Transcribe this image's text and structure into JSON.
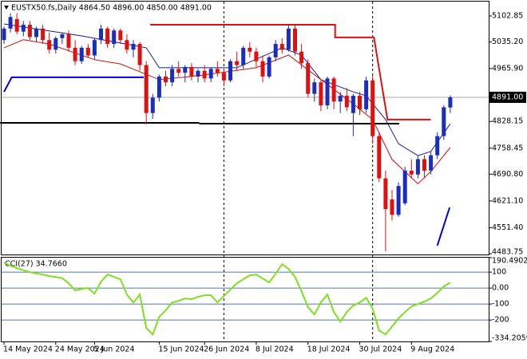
{
  "chart_data": [
    {
      "type": "candlestick",
      "title": "EUSTX50.fs,Daily  4864.50 4896.00 4850.00 4891.00",
      "categories": [
        "14 May 2024",
        null,
        null,
        null,
        null,
        null,
        null,
        null,
        "24 May 2024",
        null,
        null,
        null,
        null,
        null,
        "5 Jun 2024",
        null,
        null,
        null,
        null,
        null,
        null,
        null,
        null,
        null,
        "15 Jun 2024",
        null,
        null,
        null,
        null,
        null,
        null,
        "26 Jun 2024",
        null,
        null,
        null,
        null,
        null,
        null,
        null,
        "8 Jul 2024",
        null,
        null,
        null,
        null,
        null,
        null,
        null,
        "18 Jul 2024",
        null,
        null,
        null,
        null,
        null,
        null,
        null,
        "30 Jul 2024",
        null,
        null,
        null,
        null,
        null,
        null,
        null,
        "9 Aug 2024",
        null,
        null,
        null,
        null,
        null,
        null
      ],
      "open": [
        5040,
        5070,
        5095,
        5062,
        5080,
        5048,
        5070,
        5040,
        5015,
        5045,
        5055,
        5020,
        4985,
        5020,
        5000,
        5040,
        5070,
        5030,
        5065,
        5040,
        5015,
        5030,
        4975,
        4850,
        4890,
        4945,
        4930,
        4965,
        4955,
        4970,
        4945,
        4960,
        4940,
        4965,
        4955,
        4935,
        4985,
        4975,
        5020,
        5010,
        4985,
        4945,
        4995,
        5030,
        5015,
        5070,
        5010,
        4980,
        4900,
        4930,
        4870,
        4940,
        4880,
        4895,
        4850,
        4895,
        4860,
        4935,
        4790,
        4680,
        4625,
        4585,
        4615,
        4700,
        4690,
        4730,
        4700,
        4740,
        4790,
        4864.5
      ],
      "high": [
        5075,
        5110,
        5110,
        5090,
        5090,
        5075,
        5080,
        5060,
        5050,
        5060,
        5065,
        5040,
        5025,
        5030,
        5045,
        5080,
        5075,
        5070,
        5070,
        5055,
        5040,
        5035,
        4985,
        4900,
        4950,
        4960,
        4975,
        4985,
        4975,
        4980,
        4965,
        4975,
        4970,
        4985,
        4965,
        4990,
        5010,
        5025,
        5035,
        5020,
        5000,
        5000,
        5040,
        5045,
        5080,
        5080,
        5030,
        4990,
        4940,
        4935,
        4945,
        4945,
        4905,
        4915,
        4900,
        4905,
        4945,
        4950,
        4800,
        4700,
        4650,
        4670,
        4710,
        4730,
        4740,
        4740,
        4750,
        4800,
        4870,
        4896
      ],
      "low": [
        5030,
        5060,
        5055,
        5050,
        5040,
        5035,
        5030,
        5005,
        5005,
        5030,
        5010,
        4975,
        4978,
        4995,
        4990,
        5030,
        5020,
        5020,
        5030,
        5005,
        4995,
        4960,
        4820,
        4835,
        4880,
        4920,
        4920,
        4945,
        4930,
        4935,
        4930,
        4930,
        4930,
        4945,
        4920,
        4930,
        4960,
        4965,
        4995,
        4970,
        4930,
        4940,
        4985,
        5005,
        5010,
        5000,
        4965,
        4890,
        4880,
        4855,
        4860,
        4860,
        4850,
        4855,
        4790,
        4845,
        4850,
        4770,
        4670,
        4490,
        4570,
        4580,
        4610,
        4680,
        4680,
        4680,
        4690,
        4730,
        4780,
        4850
      ],
      "close": [
        5070,
        5100,
        5062,
        5080,
        5048,
        5070,
        5040,
        5015,
        5045,
        5055,
        5020,
        4985,
        5020,
        5000,
        5040,
        5070,
        5030,
        5065,
        5040,
        5015,
        5030,
        4975,
        4850,
        4890,
        4945,
        4930,
        4965,
        4955,
        4970,
        4945,
        4960,
        4940,
        4965,
        4955,
        4935,
        4985,
        4975,
        5020,
        5010,
        4985,
        4945,
        4995,
        5030,
        5015,
        5070,
        5010,
        4980,
        4900,
        4930,
        4870,
        4940,
        4880,
        4895,
        4865,
        4895,
        4860,
        4935,
        4790,
        4680,
        4600,
        4585,
        4660,
        4700,
        4690,
        4730,
        4700,
        4740,
        4790,
        4865,
        4891
      ],
      "up_color": "#1a2dbf",
      "down_color": "#e01010",
      "ylim": [
        4479.6,
        5134.0
      ],
      "yticks": [
        5102.85,
        {
          "value": 5035.2,
          "label": "5035.20"
        },
        {
          "value": 4965.9,
          "label": "4965.90"
        },
        4828.15,
        4758.45,
        {
          "value": 4690.8,
          "label": "4690.80"
        },
        {
          "value": 4621.1,
          "label": "4621.10"
        },
        {
          "value": 4551.4,
          "label": "4551.40"
        },
        4483.75
      ],
      "last_price": {
        "value": 4891,
        "label": "4891.00"
      },
      "separators": [
        34,
        57
      ],
      "grid": false,
      "overlays": [
        {
          "color": "#1a1a9a",
          "x": [
            0,
            12,
            22,
            24,
            36,
            43,
            46,
            49,
            54,
            56,
            59,
            61,
            64,
            66,
            69
          ],
          "values": [
            5082,
            5051,
            5020,
            4968,
            4968,
            5020,
            5001,
            4937,
            4905,
            4895,
            4833,
            4770,
            4739,
            4750,
            4822
          ]
        },
        {
          "color": "#d01010",
          "x": [
            0,
            3,
            7,
            14,
            18,
            24,
            30,
            39,
            44,
            49,
            54,
            57,
            60,
            64,
            66,
            69
          ],
          "values": [
            5020,
            5041,
            5030,
            4989,
            4978,
            4937,
            4947,
            4968,
            5001,
            4937,
            4874,
            4833,
            4729,
            4666,
            4698,
            4760
          ]
        },
        {
          "color": "#e01010",
          "x": [
            22.6,
            51.2,
            51.2,
            57.2,
            59.3,
            66
          ],
          "values": [
            5080,
            5080,
            5047,
            5047,
            4833,
            4833
          ]
        },
        {
          "color": "#0000e0",
          "x": [
            0,
            1.2,
            21.6
          ],
          "values": [
            4905,
            4943,
            4943
          ]
        },
        {
          "color": "#000000",
          "x": [
            -0.6,
            30.2
          ],
          "values": [
            4824.5,
            4824.5
          ]
        },
        {
          "color": "#000000",
          "x": [
            30.2,
            61.1
          ],
          "values": [
            4822.4,
            4822.4
          ]
        },
        {
          "color": "#0000e0",
          "x": [
            67,
            68.9
          ],
          "values": [
            4505,
            4604
          ]
        }
      ]
    },
    {
      "type": "line",
      "title": "CCI(27) 34.7660",
      "color": "#7ee01f",
      "values": [
        160,
        140,
        125,
        112,
        100,
        92,
        85,
        75,
        70,
        62,
        30,
        -15,
        -5,
        0,
        -35,
        40,
        85,
        70,
        55,
        -40,
        -90,
        -40,
        -250,
        -290,
        -180,
        -140,
        -90,
        -80,
        -65,
        -70,
        -55,
        -45,
        -45,
        -90,
        -50,
        -10,
        30,
        55,
        80,
        85,
        60,
        35,
        90,
        150,
        120,
        70,
        -20,
        -120,
        -165,
        -90,
        -40,
        -150,
        -210,
        -150,
        -110,
        -90,
        -60,
        -130,
        -265,
        -290,
        -240,
        -190,
        -150,
        -115,
        -100,
        -85,
        -65,
        -30,
        10,
        34.766
      ],
      "ylim": [
        -334.2059,
        190.4902
      ],
      "yticks": [
        190.4902,
        100,
        {
          "value": 0,
          "label": "0.00"
        },
        -100,
        -200,
        -334.2059
      ],
      "grid": true,
      "grid_color": "#5577aa"
    }
  ]
}
